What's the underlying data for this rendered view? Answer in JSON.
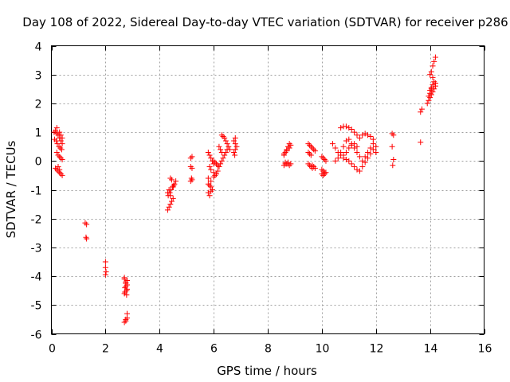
{
  "chart_data": {
    "type": "scatter",
    "title": "Day 108 of 2022, Sidereal Day-to-day VTEC variation (SDTVAR) for receiver p286",
    "xlabel": "GPS time / hours",
    "ylabel": "SDTVAR / TECUs",
    "xlim": [
      0,
      16
    ],
    "ylim": [
      -6,
      4
    ],
    "xticks": [
      0,
      2,
      4,
      6,
      8,
      10,
      12,
      14,
      16
    ],
    "yticks": [
      -6,
      -5,
      -4,
      -3,
      -2,
      -1,
      0,
      1,
      2,
      3,
      4
    ],
    "grid": true,
    "marker": "+",
    "color": "#ff0000",
    "series": [
      {
        "x": [
          0.1,
          0.15,
          0.2,
          0.25,
          0.3,
          0.35,
          0.4,
          0.12,
          0.18,
          0.22,
          0.28,
          0.33,
          0.38,
          0.2,
          0.25,
          0.3,
          0.35,
          0.4,
          0.2,
          0.3,
          0.35,
          0.4,
          0.25,
          0.3,
          0.15,
          0.2,
          0.25,
          0.3,
          0.35,
          0.4
        ],
        "y": [
          1.0,
          1.05,
          0.95,
          0.9,
          0.8,
          0.7,
          0.6,
          0.75,
          0.7,
          0.6,
          0.5,
          0.45,
          0.4,
          0.3,
          0.2,
          0.15,
          0.1,
          0.05,
          1.15,
          1.0,
          0.9,
          0.8,
          -0.2,
          -0.3,
          -0.25,
          -0.3,
          -0.35,
          -0.4,
          -0.45,
          -0.5
        ]
      },
      {
        "x": [
          1.25,
          1.3,
          1.28,
          1.3
        ],
        "y": [
          -2.15,
          -2.2,
          -2.65,
          -2.7
        ]
      },
      {
        "x": [
          2.0,
          2.0,
          2.02,
          2.0
        ],
        "y": [
          -3.5,
          -3.7,
          -3.85,
          -3.95
        ]
      },
      {
        "x": [
          2.7,
          2.75,
          2.8,
          2.72,
          2.78,
          2.7,
          2.75,
          2.8,
          2.7,
          2.75,
          2.8,
          2.72,
          2.78,
          2.8,
          2.75,
          2.7,
          2.75,
          2.8
        ],
        "y": [
          -4.1,
          -4.2,
          -4.3,
          -4.4,
          -4.5,
          -4.6,
          -4.25,
          -4.15,
          -4.05,
          -4.35,
          -4.45,
          -4.55,
          -4.65,
          -5.3,
          -5.5,
          -5.6,
          -5.55,
          -5.45
        ]
      },
      {
        "x": [
          4.3,
          4.35,
          4.4,
          4.45,
          4.5,
          4.55,
          4.6,
          4.32,
          4.38,
          4.42,
          4.48,
          4.52,
          4.4,
          4.45,
          4.5,
          4.35,
          4.3,
          4.4
        ],
        "y": [
          -1.7,
          -1.6,
          -1.5,
          -1.4,
          -1.3,
          -0.8,
          -0.7,
          -1.2,
          -1.1,
          -1.0,
          -0.9,
          -0.85,
          -0.6,
          -0.65,
          -0.9,
          -1.0,
          -1.1,
          -1.2
        ]
      },
      {
        "x": [
          5.15,
          5.2,
          5.15,
          5.2,
          5.18,
          5.2,
          5.15
        ],
        "y": [
          0.1,
          0.15,
          -0.2,
          -0.25,
          -0.6,
          -0.65,
          -0.7
        ]
      },
      {
        "x": [
          5.8,
          5.85,
          5.9,
          5.95,
          6.0,
          5.85,
          5.9,
          6.0,
          6.05,
          5.8,
          5.9,
          6.0,
          6.1,
          6.15,
          6.2,
          6.25,
          6.3,
          6.35,
          6.4,
          6.45,
          6.5,
          6.3,
          6.35,
          6.4,
          6.45,
          6.5,
          6.55,
          6.6,
          6.2,
          6.25,
          6.3,
          6.0,
          6.05,
          6.1,
          6.15,
          6.2,
          5.9,
          5.95,
          5.8,
          5.85,
          5.9,
          5.8,
          5.85,
          6.8,
          6.75,
          6.8,
          6.85,
          6.8,
          6.75,
          6.78
        ],
        "y": [
          0.3,
          0.2,
          0.1,
          0.0,
          -0.1,
          -0.2,
          -0.3,
          -0.4,
          -0.5,
          -0.6,
          -0.7,
          -0.55,
          -0.45,
          -0.35,
          -0.2,
          -0.1,
          0.0,
          0.1,
          0.2,
          0.3,
          0.4,
          0.9,
          0.85,
          0.8,
          0.7,
          0.6,
          0.5,
          0.4,
          0.5,
          0.4,
          0.3,
          0.0,
          -0.05,
          -0.1,
          -0.15,
          -0.2,
          -0.9,
          -1.0,
          -1.1,
          -1.2,
          -1.05,
          -0.8,
          -0.85,
          0.8,
          0.7,
          0.6,
          0.5,
          0.4,
          0.3,
          0.2
        ]
      },
      {
        "x": [
          8.6,
          8.65,
          8.7,
          8.75,
          8.8,
          8.85,
          8.6,
          8.7,
          8.8,
          8.65,
          8.75,
          8.85,
          8.6,
          8.65,
          8.7,
          8.75,
          8.8
        ],
        "y": [
          0.2,
          0.3,
          0.4,
          0.5,
          0.6,
          0.55,
          0.25,
          0.35,
          0.45,
          -0.1,
          -0.05,
          -0.1,
          -0.15,
          -0.05,
          -0.1,
          -0.1,
          -0.15
        ]
      },
      {
        "x": [
          9.5,
          9.55,
          9.6,
          9.65,
          9.7,
          9.75,
          9.5,
          9.55,
          9.6,
          9.65,
          9.7,
          9.75,
          9.5,
          9.55,
          9.6,
          9.65
        ],
        "y": [
          0.6,
          0.55,
          0.5,
          0.45,
          0.4,
          0.35,
          0.3,
          0.25,
          0.2,
          -0.15,
          -0.2,
          -0.25,
          -0.1,
          -0.15,
          -0.2,
          -0.25
        ]
      },
      {
        "x": [
          10.0,
          10.05,
          10.1,
          10.15,
          10.0,
          10.05,
          10.1,
          10.0,
          10.05,
          10.1,
          10.15
        ],
        "y": [
          0.15,
          0.1,
          0.05,
          0.0,
          -0.3,
          -0.35,
          -0.4,
          -0.45,
          -0.5,
          -0.45,
          -0.4
        ]
      },
      {
        "x": [
          10.4,
          10.5,
          10.6,
          10.7,
          10.8,
          10.9,
          11.0,
          11.1,
          11.2,
          11.3,
          11.4,
          11.5,
          11.6,
          11.7,
          11.8,
          11.9,
          12.0,
          10.5,
          10.6,
          10.7,
          10.8,
          10.9,
          11.0,
          11.1,
          11.2,
          11.3,
          11.4,
          11.5,
          11.6,
          11.7,
          11.8,
          11.9,
          10.7,
          10.8,
          10.9,
          11.0,
          11.1,
          11.2,
          11.3,
          11.4,
          11.5,
          11.6,
          11.7,
          11.8,
          11.9,
          12.0,
          10.8,
          10.9,
          11.0,
          11.1,
          11.2,
          11.3
        ],
        "y": [
          0.6,
          0.45,
          0.3,
          0.2,
          0.1,
          0.05,
          0.0,
          -0.1,
          -0.2,
          -0.3,
          -0.35,
          -0.2,
          -0.05,
          0.1,
          0.25,
          0.4,
          0.3,
          0.0,
          0.1,
          0.3,
          0.5,
          0.7,
          0.75,
          0.6,
          0.45,
          0.3,
          0.15,
          0.0,
          0.15,
          0.3,
          0.45,
          0.6,
          1.15,
          1.2,
          1.2,
          1.15,
          1.1,
          1.0,
          0.9,
          0.8,
          0.9,
          0.95,
          0.9,
          0.85,
          0.75,
          0.5,
          0.2,
          0.3,
          0.45,
          0.55,
          0.6,
          0.5
        ]
      },
      {
        "x": [
          12.6,
          12.65,
          12.6,
          12.65,
          12.62
        ],
        "y": [
          0.95,
          0.9,
          0.5,
          0.05,
          -0.15
        ]
      },
      {
        "x": [
          13.65,
          13.7,
          13.65
        ],
        "y": [
          1.7,
          1.8,
          0.65
        ]
      },
      {
        "x": [
          13.9,
          13.95,
          14.0,
          14.05,
          14.1,
          14.15,
          14.2,
          14.0,
          14.05,
          14.1,
          14.15,
          14.2,
          14.0,
          14.05,
          14.1,
          14.15,
          14.2,
          13.95,
          14.0,
          14.05,
          14.1
        ],
        "y": [
          2.0,
          2.1,
          2.2,
          2.3,
          2.4,
          2.5,
          2.6,
          2.45,
          2.55,
          2.65,
          2.75,
          2.7,
          3.0,
          3.1,
          3.3,
          3.45,
          3.6,
          2.25,
          2.35,
          2.5,
          2.9
        ]
      }
    ]
  }
}
